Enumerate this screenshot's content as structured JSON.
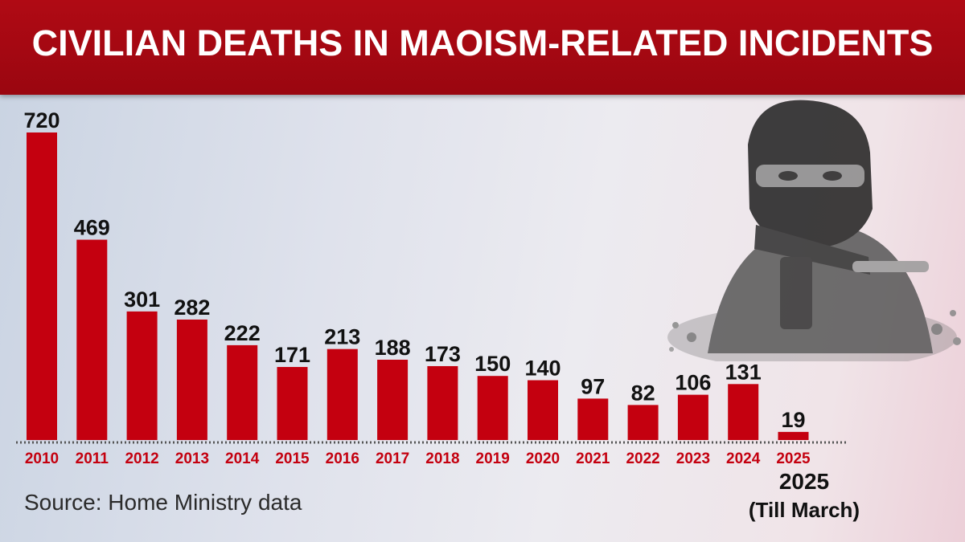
{
  "header": {
    "title": "CIVILIAN DEATHS IN MAOISM-RELATED INCIDENTS"
  },
  "source": "Source: Home Ministry data",
  "note": {
    "year": "2025",
    "range": "(Till March)"
  },
  "colors": {
    "bar": "#c4000f",
    "header": "#a8080f",
    "text": "#111111"
  },
  "image": {
    "subject": "masked-gunman-photo"
  },
  "chart_data": {
    "type": "bar",
    "title": "CIVILIAN DEATHS IN MAOISM-RELATED INCIDENTS",
    "xlabel": "",
    "ylabel": "",
    "categories": [
      "2010",
      "2011",
      "2012",
      "2013",
      "2014",
      "2015",
      "2016",
      "2017",
      "2018",
      "2019",
      "2020",
      "2021",
      "2022",
      "2023",
      "2024",
      "2025"
    ],
    "values": [
      720,
      469,
      301,
      282,
      222,
      171,
      213,
      188,
      173,
      150,
      140,
      97,
      82,
      106,
      131,
      19
    ],
    "ylim": [
      0,
      720
    ],
    "grid": false,
    "legend": "none",
    "data_labels": true
  }
}
